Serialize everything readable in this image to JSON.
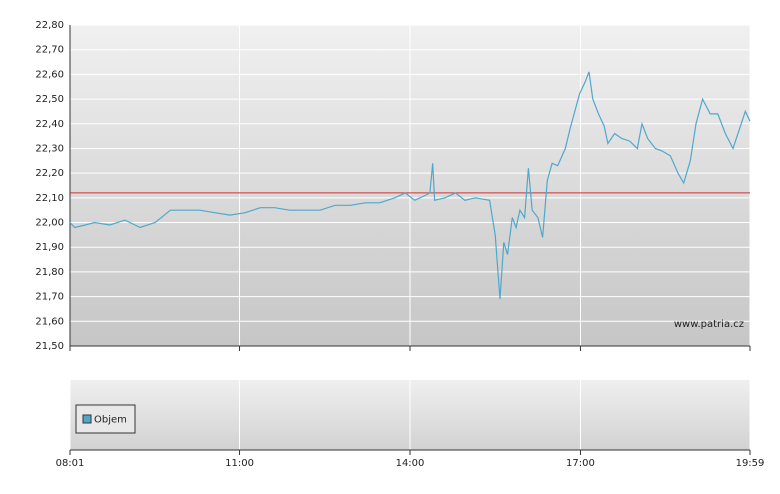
{
  "chart_data": [
    {
      "type": "line",
      "xlim": [
        481,
        1199
      ],
      "xticks": [
        {
          "value": 481,
          "label": "08:01"
        },
        {
          "value": 660,
          "label": "11:00"
        },
        {
          "value": 840,
          "label": "14:00"
        },
        {
          "value": 1020,
          "label": "17:00"
        },
        {
          "value": 1199,
          "label": "19:59"
        }
      ],
      "ylim": [
        21.5,
        22.8
      ],
      "yticks": [
        {
          "value": 21.5,
          "label": "21,50"
        },
        {
          "value": 21.6,
          "label": "21,60"
        },
        {
          "value": 21.7,
          "label": "21,70"
        },
        {
          "value": 21.8,
          "label": "21,80"
        },
        {
          "value": 21.9,
          "label": "21,90"
        },
        {
          "value": 22.0,
          "label": "22,00"
        },
        {
          "value": 22.1,
          "label": "22,10"
        },
        {
          "value": 22.2,
          "label": "22,20"
        },
        {
          "value": 22.3,
          "label": "22,30"
        },
        {
          "value": 22.4,
          "label": "22,40"
        },
        {
          "value": 22.5,
          "label": "22,50"
        },
        {
          "value": 22.6,
          "label": "22,60"
        },
        {
          "value": 22.7,
          "label": "22,70"
        },
        {
          "value": 22.8,
          "label": "22,80"
        }
      ],
      "grid": true,
      "reference_line": {
        "value": 22.12,
        "color": "#cc3333"
      },
      "watermark": "www.patria.cz",
      "series": [
        {
          "color": "#4fa8cc",
          "x": [
            481,
            486,
            497,
            507,
            523,
            539,
            555,
            571,
            587,
            602,
            618,
            634,
            650,
            666,
            682,
            697,
            713,
            729,
            745,
            761,
            777,
            793,
            808,
            824,
            835,
            845,
            856,
            861,
            864,
            866,
            877,
            888,
            898,
            909,
            924,
            930,
            935,
            939,
            943,
            948,
            952,
            956,
            961,
            965,
            969,
            975,
            980,
            985,
            990,
            996,
            1004,
            1009,
            1014,
            1019,
            1025,
            1029,
            1033,
            1039,
            1045,
            1049,
            1056,
            1064,
            1072,
            1080,
            1085,
            1091,
            1099,
            1106,
            1115,
            1123,
            1129,
            1136,
            1142,
            1149,
            1157,
            1165,
            1173,
            1181,
            1188,
            1194,
            1199
          ],
          "values": [
            22.0,
            21.98,
            21.99,
            22.0,
            21.99,
            22.01,
            21.98,
            22.0,
            22.05,
            22.05,
            22.05,
            22.04,
            22.03,
            22.04,
            22.06,
            22.06,
            22.05,
            22.05,
            22.05,
            22.07,
            22.07,
            22.08,
            22.08,
            22.1,
            22.12,
            22.09,
            22.11,
            22.12,
            22.24,
            22.09,
            22.1,
            22.12,
            22.09,
            22.1,
            22.09,
            21.95,
            21.69,
            21.92,
            21.87,
            22.02,
            21.98,
            22.05,
            22.02,
            22.22,
            22.05,
            22.02,
            21.94,
            22.17,
            22.24,
            22.23,
            22.3,
            22.38,
            22.45,
            22.52,
            22.57,
            22.61,
            22.5,
            22.44,
            22.39,
            22.32,
            22.36,
            22.34,
            22.33,
            22.3,
            22.4,
            22.34,
            22.3,
            22.29,
            22.27,
            22.2,
            22.16,
            22.25,
            22.4,
            22.5,
            22.44,
            22.44,
            22.36,
            22.3,
            22.38,
            22.45,
            22.41
          ]
        }
      ]
    },
    {
      "type": "bar",
      "series": [
        {
          "name": "Objem",
          "color": "#4fa8cc",
          "values": []
        }
      ]
    }
  ]
}
